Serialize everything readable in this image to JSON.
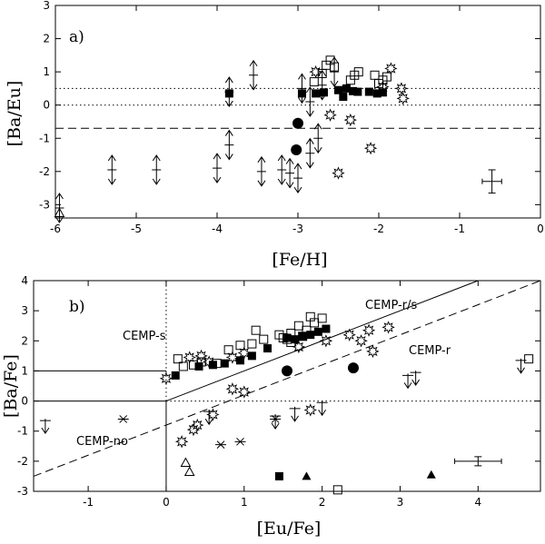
{
  "chart_data": [
    {
      "type": "scatter",
      "panel_label": "a)",
      "xlabel": "[Fe/H]",
      "ylabel": "[Ba/Eu]",
      "xlim": [
        -6,
        0
      ],
      "ylim": [
        -3.4,
        3
      ],
      "xticks": [
        -6,
        -5,
        -4,
        -3,
        -2,
        -1,
        0
      ],
      "yticks": [
        -3,
        -2,
        -1,
        0,
        1,
        2,
        3
      ],
      "reference_lines": [
        {
          "style": "dotted",
          "y": 0.5
        },
        {
          "style": "dotted",
          "y": 0
        },
        {
          "style": "dashed",
          "y": -0.7
        }
      ],
      "series": [
        {
          "marker": "filled-square",
          "points": [
            [
              -3.85,
              0.35
            ],
            [
              -2.95,
              0.35
            ],
            [
              -2.78,
              0.35
            ],
            [
              -2.68,
              0.38
            ],
            [
              -2.5,
              0.45
            ],
            [
              -2.44,
              0.25
            ],
            [
              -2.4,
              0.5
            ],
            [
              -2.32,
              0.42
            ],
            [
              -2.26,
              0.4
            ],
            [
              -2.12,
              0.4
            ],
            [
              -2.02,
              0.35
            ],
            [
              -1.95,
              0.38
            ]
          ]
        },
        {
          "marker": "filled-circle",
          "points": [
            [
              -3.0,
              -0.55
            ],
            [
              -3.02,
              -1.35
            ]
          ]
        },
        {
          "marker": "open-square",
          "points": [
            [
              -2.7,
              0.95
            ],
            [
              -2.65,
              1.2
            ],
            [
              -2.6,
              1.35
            ],
            [
              -2.55,
              1.15
            ],
            [
              -2.35,
              0.75
            ],
            [
              -2.3,
              0.9
            ],
            [
              -2.25,
              1.0
            ],
            [
              -2.05,
              0.9
            ],
            [
              -2.0,
              0.65
            ],
            [
              -1.95,
              0.75
            ],
            [
              -1.9,
              0.85
            ],
            [
              -2.8,
              0.7
            ]
          ]
        },
        {
          "marker": "starburst",
          "points": [
            [
              -2.78,
              1.0
            ],
            [
              -2.6,
              -0.3
            ],
            [
              -2.5,
              -2.05
            ],
            [
              -2.35,
              -0.45
            ],
            [
              -2.1,
              -1.3
            ],
            [
              -1.95,
              0.55
            ],
            [
              -1.85,
              1.1
            ],
            [
              -1.72,
              0.5
            ],
            [
              -1.7,
              0.2
            ]
          ]
        },
        {
          "marker": "double-arrow",
          "points": [
            [
              -5.95,
              -3.1
            ],
            [
              -5.3,
              -1.95
            ],
            [
              -4.75,
              -1.95
            ],
            [
              -4.0,
              -1.9
            ],
            [
              -3.85,
              0.4
            ],
            [
              -3.85,
              -1.2
            ],
            [
              -3.55,
              0.9
            ],
            [
              -3.45,
              -2.0
            ],
            [
              -3.2,
              -1.95
            ],
            [
              -3.1,
              -2.05
            ],
            [
              -3.0,
              -2.2
            ],
            [
              -2.95,
              0.5
            ],
            [
              -2.85,
              0.1
            ],
            [
              -2.75,
              -1.0
            ],
            [
              -2.85,
              -1.45
            ],
            [
              -2.7,
              0.6
            ],
            [
              -2.55,
              1.0
            ]
          ]
        },
        {
          "marker": "open-triangle",
          "points": [
            [
              -5.95,
              -3.25
            ]
          ]
        }
      ],
      "error_bar": {
        "x": -0.6,
        "y": -2.3,
        "xerr": 0.12,
        "yerr": 0.35
      }
    },
    {
      "type": "scatter",
      "panel_label": "b)",
      "xlabel": "[Eu/Fe]",
      "ylabel": "[Ba/Fe]",
      "xlim": [
        -1.7,
        4.8
      ],
      "ylim": [
        -3,
        4
      ],
      "xticks": [
        -1,
        0,
        1,
        2,
        3,
        4
      ],
      "yticks": [
        -3,
        -2,
        -1,
        0,
        1,
        2,
        3,
        4
      ],
      "annotations": [
        "CEMP-s",
        "CEMP-r/s",
        "CEMP-r",
        "CEMP-no"
      ],
      "series": [
        {
          "marker": "open-square",
          "points": [
            [
              0.15,
              1.4
            ],
            [
              0.22,
              1.15
            ],
            [
              0.35,
              1.2
            ],
            [
              0.45,
              1.3
            ],
            [
              0.65,
              1.25
            ],
            [
              0.8,
              1.7
            ],
            [
              0.95,
              1.85
            ],
            [
              1.1,
              1.9
            ],
            [
              1.25,
              2.05
            ],
            [
              1.45,
              2.2
            ],
            [
              1.55,
              2.05
            ],
            [
              1.6,
              2.25
            ],
            [
              1.7,
              2.5
            ],
            [
              1.8,
              2.35
            ],
            [
              1.85,
              2.8
            ],
            [
              1.9,
              2.6
            ],
            [
              2.0,
              2.75
            ],
            [
              1.15,
              2.35
            ],
            [
              2.2,
              -2.95
            ],
            [
              4.65,
              1.4
            ],
            [
              1.5,
              2.1
            ],
            [
              1.75,
              2.15
            ],
            [
              1.6,
              1.95
            ]
          ]
        },
        {
          "marker": "filled-square",
          "points": [
            [
              0.12,
              0.85
            ],
            [
              0.42,
              1.15
            ],
            [
              0.6,
              1.2
            ],
            [
              0.75,
              1.25
            ],
            [
              0.95,
              1.35
            ],
            [
              1.1,
              1.5
            ],
            [
              1.3,
              1.75
            ],
            [
              1.55,
              2.1
            ],
            [
              1.65,
              2.05
            ],
            [
              1.75,
              2.15
            ],
            [
              1.85,
              2.2
            ],
            [
              1.95,
              2.3
            ],
            [
              2.05,
              2.4
            ],
            [
              1.45,
              -2.5
            ]
          ]
        },
        {
          "marker": "filled-circle",
          "points": [
            [
              1.55,
              1.0
            ],
            [
              2.4,
              1.1
            ]
          ]
        },
        {
          "marker": "filled-triangle",
          "points": [
            [
              1.8,
              -2.5
            ],
            [
              3.4,
              -2.45
            ]
          ]
        },
        {
          "marker": "open-triangle",
          "points": [
            [
              0.25,
              -2.05
            ],
            [
              0.3,
              -2.35
            ]
          ]
        },
        {
          "marker": "starburst",
          "points": [
            [
              0.0,
              0.75
            ],
            [
              0.3,
              1.45
            ],
            [
              0.45,
              1.5
            ],
            [
              0.55,
              1.3
            ],
            [
              0.85,
              1.45
            ],
            [
              1.0,
              1.6
            ],
            [
              1.7,
              1.8
            ],
            [
              2.05,
              2.0
            ],
            [
              2.35,
              2.2
            ],
            [
              2.6,
              2.35
            ],
            [
              2.65,
              1.65
            ],
            [
              2.85,
              2.45
            ],
            [
              0.85,
              0.4
            ],
            [
              1.0,
              0.3
            ],
            [
              0.2,
              -1.35
            ],
            [
              0.35,
              -0.95
            ],
            [
              0.4,
              -0.8
            ],
            [
              0.6,
              -0.45
            ],
            [
              1.85,
              -0.3
            ],
            [
              2.5,
              2.0
            ]
          ]
        },
        {
          "marker": "asterisk",
          "points": [
            [
              -0.55,
              -0.6
            ],
            [
              0.7,
              -1.45
            ],
            [
              0.95,
              -1.35
            ],
            [
              1.4,
              -0.6
            ]
          ]
        },
        {
          "marker": "down-arrow",
          "points": [
            [
              -1.55,
              -0.65
            ],
            [
              3.1,
              0.85
            ],
            [
              3.2,
              0.95
            ],
            [
              2.0,
              -0.05
            ],
            [
              1.65,
              -0.25
            ],
            [
              4.55,
              1.35
            ],
            [
              1.4,
              -0.5
            ],
            [
              0.55,
              -0.35
            ]
          ]
        }
      ],
      "lines": [
        {
          "style": "solid",
          "from": [
            -1.7,
            1.0
          ],
          "to": [
            0.0,
            1.0
          ]
        },
        {
          "style": "solid",
          "from": [
            -1.7,
            0.0
          ],
          "to": [
            0.0,
            0.0
          ]
        },
        {
          "style": "solid",
          "from": [
            0.0,
            -3.0
          ],
          "to": [
            0.0,
            0.0
          ]
        },
        {
          "style": "dotted",
          "from": [
            0.0,
            0.0
          ],
          "to": [
            0.0,
            4.0
          ]
        },
        {
          "style": "dotted",
          "from": [
            0.0,
            0.0
          ],
          "to": [
            4.8,
            0.0
          ]
        },
        {
          "style": "solid",
          "from": [
            0.0,
            0.0
          ],
          "to": [
            4.0,
            4.0
          ]
        },
        {
          "style": "dashed",
          "from": [
            -1.7,
            -2.5
          ],
          "to": [
            4.8,
            4.0
          ]
        }
      ],
      "error_bar": {
        "x": 4.0,
        "y": -2.0,
        "xerr": 0.3,
        "yerr": 0.15
      }
    }
  ]
}
